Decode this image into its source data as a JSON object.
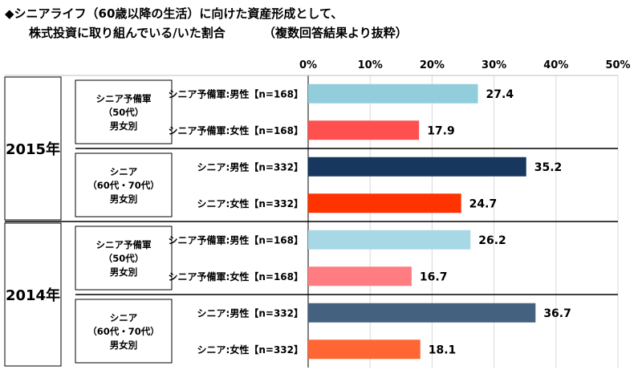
{
  "title_line1": "◆シニアライフ（60歳以降の生活）に向けた資産形成として、",
  "title_line2": "株式投資に取り組んでいる/いた割合",
  "title_note": "（複数回答結果より抜粋）",
  "chart_data": {
    "type": "bar",
    "orientation": "horizontal",
    "xlim": [
      0,
      50
    ],
    "x_ticks": [
      "0%",
      "10%",
      "20%",
      "30%",
      "40%",
      "50%"
    ],
    "years": [
      {
        "year": "2015年",
        "groups": [
          {
            "label_lines": [
              "シニア予備軍",
              "（50代）",
              "男女別"
            ],
            "bars": [
              {
                "label": "シニア予備軍:男性【n=168】",
                "value": 27.4,
                "value_label": "27.4",
                "color": "#92CDDC"
              },
              {
                "label": "シニア予備軍:女性【n=168】",
                "value": 17.9,
                "value_label": "17.9",
                "color": "#FF5050"
              }
            ]
          },
          {
            "label_lines": [
              "シニア",
              "（60代・70代）",
              "男女別"
            ],
            "bars": [
              {
                "label": "シニア:男性【n=332】",
                "value": 35.2,
                "value_label": "35.2",
                "color": "#17375E"
              },
              {
                "label": "シニア:女性【n=332】",
                "value": 24.7,
                "value_label": "24.7",
                "color": "#FF3300"
              }
            ]
          }
        ]
      },
      {
        "year": "2014年",
        "groups": [
          {
            "label_lines": [
              "シニア予備軍",
              "（50代）",
              "男女別"
            ],
            "bars": [
              {
                "label": "シニア予備軍:男性【n=168】",
                "value": 26.2,
                "value_label": "26.2",
                "color": "#A8D8E6"
              },
              {
                "label": "シニア予備軍:女性【n=168】",
                "value": 16.7,
                "value_label": "16.7",
                "color": "#FF7C80"
              }
            ]
          },
          {
            "label_lines": [
              "シニア",
              "（60代・70代）",
              "男女別"
            ],
            "bars": [
              {
                "label": "シニア:男性【n=332】",
                "value": 36.7,
                "value_label": "36.7",
                "color": "#44617F"
              },
              {
                "label": "シニア:女性【n=332】",
                "value": 18.1,
                "value_label": "18.1",
                "color": "#FF6633"
              }
            ]
          }
        ]
      }
    ]
  }
}
